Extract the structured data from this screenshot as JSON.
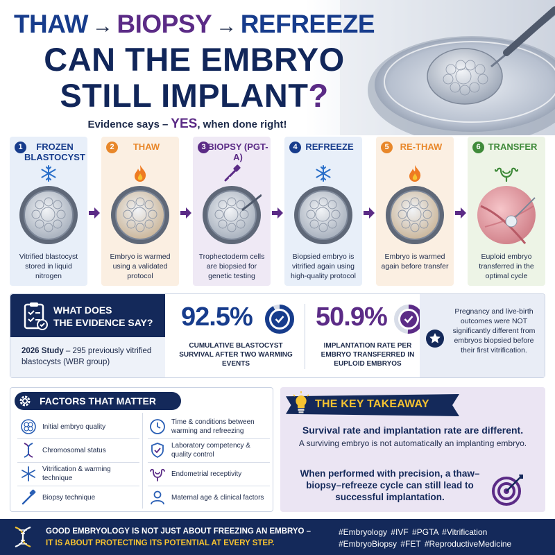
{
  "header": {
    "title_word1": "THAW",
    "title_word2": "BIOPSY",
    "title_word3": "REFREEZE",
    "arrow": "→",
    "headline_line1": "CAN THE EMBRYO",
    "headline_line2": "STILL IMPLANT",
    "headline_q": "?",
    "evidence_prefix": "Evidence says",
    "evidence_dash": "–",
    "evidence_yes": "YES",
    "evidence_suffix": ", when done right!"
  },
  "steps": [
    {
      "num": "1",
      "title": "FROZEN BLASTOCYST",
      "icon": "snowflake-icon",
      "glyph": "❄",
      "desc": "Vitrified blastocyst stored in liquid nitrogen",
      "color": "#173c8c",
      "bg": "#e8eff9"
    },
    {
      "num": "2",
      "title": "THAW",
      "icon": "flame-icon",
      "glyph": "🔥",
      "desc": "Embryo is warmed using a validated protocol",
      "color": "#e8872a",
      "bg": "#fbefe2"
    },
    {
      "num": "3",
      "title": "BIOPSY (PGT-A)",
      "icon": "pipette-icon",
      "glyph": "",
      "desc": "Trophectoderm cells are biopsied for genetic testing",
      "color": "#5b2b86",
      "bg": "#efe9f5"
    },
    {
      "num": "4",
      "title": "REFREEZE",
      "icon": "snowflake-icon",
      "glyph": "❄",
      "desc": "Biopsied embryo is vitrified again using high-quality protocol",
      "color": "#173c8c",
      "bg": "#e8eff9"
    },
    {
      "num": "5",
      "title": "RE-THAW",
      "icon": "flame-icon",
      "glyph": "🔥",
      "desc": "Embryo is warmed again before transfer",
      "color": "#e8872a",
      "bg": "#fbefe2"
    },
    {
      "num": "6",
      "title": "TRANSFER",
      "icon": "uterus-icon",
      "glyph": "",
      "desc": "Euploid embryo transferred in the optimal cycle",
      "color": "#3f8a3a",
      "bg": "#edf4e6"
    }
  ],
  "evidence": {
    "heading_line1": "WHAT DOES",
    "heading_line2": "THE EVIDENCE SAY?",
    "study_bold": "2026 Study",
    "study_text": " – 295 previously vitrified blastocysts (WBR group)",
    "stat1_value": "92.5%",
    "stat1_fraction": 0.925,
    "stat1_label": "CUMULATIVE BLASTOCYST SURVIVAL AFTER TWO WARMING EVENTS",
    "stat1_color": "#173c8c",
    "stat2_value": "50.9%",
    "stat2_fraction": 0.509,
    "stat2_label": "IMPLANTATION RATE PER EMBRYO TRANSFERRED IN EUPLOID EMBRYOS",
    "stat2_color": "#5b2b86",
    "note": "Pregnancy and live-birth outcomes were NOT significantly different from embryos biopsied before their first vitrification."
  },
  "factors": {
    "heading": "FACTORS THAT MATTER",
    "left": [
      {
        "label": "Initial embryo quality",
        "icon": "embryo-icon"
      },
      {
        "label": "Chromosomal status",
        "icon": "dna-icon"
      },
      {
        "label": "Vitrification & warming technique",
        "icon": "snowflake-icon"
      },
      {
        "label": "Biopsy technique",
        "icon": "pipette-icon"
      }
    ],
    "right": [
      {
        "label": "Time & conditions between warming and refreezing",
        "icon": "clock-icon"
      },
      {
        "label": "Laboratory competency & quality control",
        "icon": "shield-check-icon"
      },
      {
        "label": "Endometrial receptivity",
        "icon": "uterus-icon"
      },
      {
        "label": "Maternal age & clinical factors",
        "icon": "person-icon"
      }
    ]
  },
  "takeaway": {
    "title": "THE KEY TAKEAWAY",
    "line1": "Survival rate and implantation rate are different.",
    "line2": "A surviving embryo is not automatically an implanting embryo.",
    "line3": "When performed with precision, a thaw–biopsy–refreeze cycle can still lead to successful implantation."
  },
  "footer": {
    "line1": "GOOD EMBRYOLOGY IS NOT JUST ABOUT FREEZING AN EMBRYO –",
    "line2": "IT IS ABOUT PROTECTING ITS POTENTIAL AT EVERY STEP.",
    "tags1": "#Embryology  #IVF  #PGTA  #Vitrification",
    "tags2": "#EmbryoBiopsy  #FET  #ReproductiveMedicine"
  },
  "colors": {
    "navy": "#14295a",
    "blue": "#173c8c",
    "purple": "#5b2b86",
    "orange": "#e8872a",
    "green": "#3f8a3a",
    "gold": "#f6c331"
  }
}
